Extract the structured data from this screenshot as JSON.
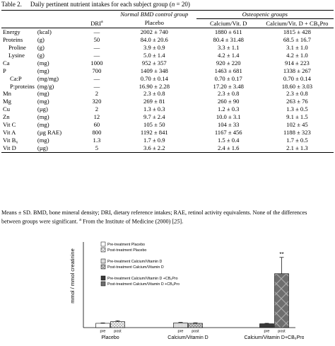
{
  "caption": {
    "label": "Table 2.",
    "title_prefix": "Daily pertinent nutrient intakes for each subject group (",
    "n_var": "n",
    "title_suffix": " = 20)"
  },
  "table": {
    "group_header_normal": "Normal BMD control group",
    "group_header_osteo": "Osteopenic groups",
    "col_dri": "DRI",
    "col_dri_sup": "a",
    "col_placebo": "Placebo",
    "col_cal": "Calcium/Vit. D",
    "col_calpro": "Calcium/Vit. D + CB₆Pro",
    "rows": [
      {
        "name": "Energy",
        "unit": "(kcal)",
        "dri": "—",
        "placebo": "2002 ± 740",
        "cal": "1880 ± 611",
        "calpro": "1815 ± 428",
        "indent": 0
      },
      {
        "name": "Proteins",
        "unit": "(g)",
        "dri": "50",
        "placebo": "84.0 ± 20.6",
        "cal": "80.4 ± 31.48",
        "calpro": "68.5 ± 16.7",
        "indent": 0
      },
      {
        "name": "Proline",
        "unit": "(g)",
        "dri": "—",
        "placebo": "3.9 ± 0.9",
        "cal": "3.3 ± 1.1",
        "calpro": "3.1 ± 1.0",
        "indent": 1
      },
      {
        "name": "Lysine",
        "unit": "(g)",
        "dri": "—",
        "placebo": "5.0 ± 1.4",
        "cal": "4.2 ± 1.4",
        "calpro": "4.2 ± 1.0",
        "indent": 1
      },
      {
        "name": "Ca",
        "unit": "(mg)",
        "dri": "1000",
        "placebo": "952 ± 357",
        "cal": "920 ± 220",
        "calpro": "914 ± 223",
        "indent": 0
      },
      {
        "name": "P",
        "unit": "(mg)",
        "dri": "700",
        "placebo": "1409 ± 348",
        "cal": "1463 ± 681",
        "calpro": "1338 ± 267",
        "indent": 0
      },
      {
        "name": "Ca:P",
        "unit": "(mg/mg)",
        "dri": "—",
        "placebo": "0.70 ± 0.14",
        "cal": "0.70 ± 0.17",
        "calpro": "0.70 ± 0.14",
        "indent": 2
      },
      {
        "name": "P:proteins",
        "unit": "(mg/g)",
        "dri": "—",
        "placebo": "16.90 ± 2.28",
        "cal": "17.20 ± 3.48",
        "calpro": "18.60 ± 3.03",
        "indent": 2
      },
      {
        "name": "Mn",
        "unit": "(mg)",
        "dri": "2",
        "placebo": "2.3 ± 0.8",
        "cal": "2.3 ± 0.8",
        "calpro": "2.3 ± 0.8",
        "indent": 0
      },
      {
        "name": "Mg",
        "unit": "(mg)",
        "dri": "320",
        "placebo": "269 ± 81",
        "cal": "260 ± 90",
        "calpro": "263 ± 76",
        "indent": 0
      },
      {
        "name": "Cu",
        "unit": "(µg)",
        "dri": "2",
        "placebo": "1.3 ± 0.3",
        "cal": "1.2 ± 0.3",
        "calpro": "1.3 ± 0.5",
        "indent": 0
      },
      {
        "name": "Zn",
        "unit": "(mg)",
        "dri": "12",
        "placebo": "9.7 ± 2.4",
        "cal": "10.0 ± 3.1",
        "calpro": "9.1 ± 1.5",
        "indent": 0
      },
      {
        "name": "Vit C",
        "unit": "(mg)",
        "dri": "60",
        "placebo": "105 ± 50",
        "cal": "104 ± 33",
        "calpro": "102 ± 45",
        "indent": 0
      },
      {
        "name": "Vit A",
        "unit": "(µg RAE)",
        "dri": "800",
        "placebo": "1192 ± 841",
        "cal": "1167 ± 456",
        "calpro": "1188 ± 323",
        "indent": 0
      },
      {
        "name": "Vit B₆",
        "unit": "(mg)",
        "dri": "1.3",
        "placebo": "1.7 ± 0.9",
        "cal": "1.5 ± 0.4",
        "calpro": "1.7 ± 0.5",
        "indent": 0
      },
      {
        "name": "Vit D",
        "unit": "(µg)",
        "dri": "5",
        "placebo": "3.6 ± 2.2",
        "cal": "2.4 ± 1.6",
        "calpro": "2.1 ± 1.3",
        "indent": 0
      }
    ]
  },
  "footnote": {
    "line1": "Means ± SD. BMD, bone mineral density; DRI, dietary reference intakes; RAE, retinol activity equivalents. None of the differences",
    "line2_prefix": "between groups were significant. ",
    "line2_sup": "a",
    "line2_main": " From the Institute of Medicine (2000) [",
    "line2_ref": "25",
    "line2_end": "]."
  },
  "chart_data": {
    "type": "bar",
    "ylabel": "mmol / mmol creatinine",
    "categories": [
      "Placebo",
      "Calcium/Vitamin D",
      "Calcium/Vitamin D+CB₆Pro"
    ],
    "subcategories": [
      "pre",
      "post"
    ],
    "series": [
      {
        "name": "Pre-treatment Placebo",
        "group": 0,
        "sub": 0,
        "value": 0.5,
        "err": 0.05,
        "pattern": "white"
      },
      {
        "name": "Post-treatment Placebo",
        "group": 0,
        "sub": 1,
        "value": 0.7,
        "err": 0.1,
        "pattern": "cross-light"
      },
      {
        "name": "Pre-treatment Calcium/Vitamin D",
        "group": 1,
        "sub": 0,
        "value": 0.55,
        "err": 0.06,
        "pattern": "gray-light"
      },
      {
        "name": "Post-treatment Calcium/Vitamin D",
        "group": 1,
        "sub": 1,
        "value": 0.5,
        "err": 0.06,
        "pattern": "cross-gray"
      },
      {
        "name": "Pre-treatment Calcium/Vitamin D +CB₆Pro",
        "group": 2,
        "sub": 0,
        "value": 0.45,
        "err": 0.05,
        "pattern": "dark"
      },
      {
        "name": "Post-treatment Calcium/Vitamin D +CB₆Pro",
        "group": 2,
        "sub": 1,
        "value": 6.3,
        "err": 1.9,
        "pattern": "cross-dark"
      }
    ],
    "annotation": "**",
    "ylim": [
      0,
      10
    ],
    "legend_groups": [
      [
        0,
        1
      ],
      [
        2,
        3
      ],
      [
        4,
        5
      ]
    ],
    "legend_labels": [
      "Pre-treatment Placebo",
      "Post-treatment Placebo",
      "Pre-treatment Calcium/Vitamin D",
      "Post-treatment Calcium/Vitamin D",
      "Pre-treatment Calcium/Vitamin D +CB₆Pro",
      "Post-treatment Calcium/Vitamin D +CB₆Pro"
    ]
  }
}
